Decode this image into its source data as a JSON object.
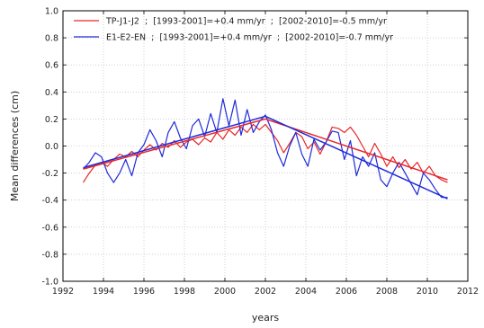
{
  "chart_data": {
    "type": "line",
    "xlabel": "years",
    "ylabel": "Mean differences (cm)",
    "xlim": [
      1992,
      2012
    ],
    "ylim": [
      -1.0,
      1.0
    ],
    "x_ticks": [
      1992,
      1994,
      1996,
      1998,
      2000,
      2002,
      2004,
      2006,
      2008,
      2010,
      2012
    ],
    "y_ticks": [
      -1.0,
      -0.8,
      -0.6,
      -0.4,
      -0.2,
      0.0,
      0.2,
      0.4,
      0.6,
      0.8,
      1.0
    ],
    "y_tick_labels": [
      "-1.0",
      "-0.8",
      "-0.6",
      "-0.4",
      "-0.2",
      "0.0",
      "0.2",
      "0.4",
      "0.6",
      "0.8",
      "1.0"
    ],
    "grid": true,
    "legend_position": "top-left",
    "series": [
      {
        "name": "TP-J1-J2  ;  [1993-2001]=+0.4 mm/yr  ;  [2002-2010]=-0.5 mm/yr",
        "color": "#e8262a",
        "x": [
          1993.0,
          1993.3,
          1993.6,
          1993.9,
          1994.2,
          1994.5,
          1994.8,
          1995.1,
          1995.4,
          1995.7,
          1996.0,
          1996.3,
          1996.6,
          1996.9,
          1997.2,
          1997.5,
          1997.8,
          1998.1,
          1998.4,
          1998.7,
          1999.0,
          1999.3,
          1999.6,
          1999.9,
          2000.2,
          2000.5,
          2000.8,
          2001.1,
          2001.4,
          2001.7,
          2002.0,
          2002.3,
          2002.6,
          2002.9,
          2003.2,
          2003.5,
          2003.8,
          2004.1,
          2004.4,
          2004.7,
          2005.0,
          2005.3,
          2005.6,
          2005.9,
          2006.2,
          2006.5,
          2006.8,
          2007.1,
          2007.4,
          2007.7,
          2008.0,
          2008.3,
          2008.6,
          2008.9,
          2009.2,
          2009.5,
          2009.8,
          2010.1,
          2010.4,
          2010.7,
          2011.0
        ],
        "values": [
          -0.27,
          -0.2,
          -0.14,
          -0.12,
          -0.15,
          -0.1,
          -0.06,
          -0.08,
          -0.04,
          -0.08,
          -0.03,
          0.01,
          -0.03,
          0.02,
          -0.01,
          0.04,
          -0.01,
          0.03,
          0.05,
          0.01,
          0.06,
          0.03,
          0.1,
          0.05,
          0.12,
          0.08,
          0.14,
          0.1,
          0.16,
          0.12,
          0.16,
          0.1,
          0.04,
          -0.05,
          0.02,
          0.1,
          0.07,
          -0.02,
          0.03,
          -0.06,
          0.03,
          0.14,
          0.13,
          0.1,
          0.14,
          0.08,
          0.0,
          -0.08,
          0.02,
          -0.06,
          -0.15,
          -0.08,
          -0.16,
          -0.1,
          -0.17,
          -0.12,
          -0.2,
          -0.15,
          -0.22,
          -0.25,
          -0.27
        ]
      },
      {
        "name": "E1-E2-EN  ;  [1993-2001]=+0.4 mm/yr  ;  [2002-2010]=-0.7 mm/yr",
        "color": "#1f2bd8",
        "x": [
          1993.0,
          1993.3,
          1993.6,
          1993.9,
          1994.2,
          1994.5,
          1994.8,
          1995.1,
          1995.4,
          1995.7,
          1996.0,
          1996.3,
          1996.6,
          1996.9,
          1997.2,
          1997.5,
          1997.8,
          1998.1,
          1998.4,
          1998.7,
          1999.0,
          1999.3,
          1999.6,
          1999.9,
          2000.2,
          2000.5,
          2000.8,
          2001.1,
          2001.4,
          2001.7,
          2002.0,
          2002.3,
          2002.6,
          2002.9,
          2003.2,
          2003.5,
          2003.8,
          2004.1,
          2004.4,
          2004.7,
          2005.0,
          2005.3,
          2005.6,
          2005.9,
          2006.2,
          2006.5,
          2006.8,
          2007.1,
          2007.4,
          2007.7,
          2008.0,
          2008.3,
          2008.6,
          2008.9,
          2009.2,
          2009.5,
          2009.8,
          2010.1,
          2010.4,
          2010.7,
          2011.0
        ],
        "values": [
          -0.17,
          -0.12,
          -0.05,
          -0.08,
          -0.2,
          -0.27,
          -0.2,
          -0.1,
          -0.22,
          -0.05,
          0.01,
          0.12,
          0.04,
          -0.08,
          0.1,
          0.18,
          0.06,
          -0.02,
          0.15,
          0.2,
          0.07,
          0.24,
          0.1,
          0.35,
          0.15,
          0.34,
          0.08,
          0.27,
          0.1,
          0.18,
          0.23,
          0.12,
          -0.05,
          -0.15,
          0.0,
          0.1,
          -0.06,
          -0.15,
          0.05,
          -0.03,
          0.03,
          0.11,
          0.1,
          -0.1,
          0.04,
          -0.22,
          -0.08,
          -0.15,
          -0.05,
          -0.25,
          -0.3,
          -0.2,
          -0.12,
          -0.2,
          -0.28,
          -0.36,
          -0.2,
          -0.25,
          -0.32,
          -0.38,
          -0.38
        ]
      }
    ],
    "trend_lines": [
      {
        "series": "TP-J1-J2",
        "color": "#e8262a",
        "points": [
          [
            1993,
            -0.17
          ],
          [
            2002,
            0.2
          ],
          [
            2011,
            -0.25
          ]
        ]
      },
      {
        "series": "E1-E2-EN",
        "color": "#1f2bd8",
        "points": [
          [
            1993,
            -0.16
          ],
          [
            2002,
            0.22
          ],
          [
            2011,
            -0.39
          ]
        ]
      }
    ]
  }
}
